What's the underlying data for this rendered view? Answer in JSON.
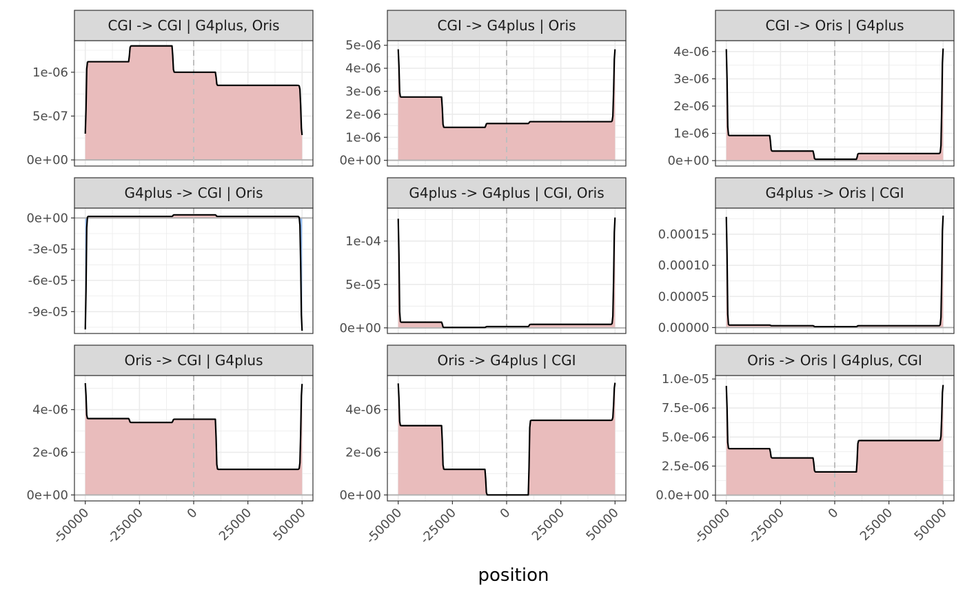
{
  "figure": {
    "xlabel": "position",
    "x_ticks": [
      -50000,
      -25000,
      0,
      25000,
      50000
    ],
    "x_tick_labels": [
      "-50000",
      "-25000",
      "0",
      "25000",
      "50000"
    ],
    "xlim": [
      -55000,
      55000
    ],
    "colors": {
      "positive_fill": "#e9bcbc",
      "negative_fill": "#8fbaf3",
      "line": "#000000",
      "strip_bg": "#d9d9d9",
      "panel_border": "#333333",
      "grid": "#ebebeb",
      "zero_line": "#b3b3b3",
      "center_dash": "#bfbfbf"
    }
  },
  "chart_data": [
    {
      "type": "area",
      "title": "CGI -> CGI | G4plus, Oris",
      "ylim": [
        -7e-08,
        1.36e-06
      ],
      "y_ticks": [
        0,
        5e-07,
        1e-06
      ],
      "y_tick_labels": [
        "0e+00",
        "5e-07",
        "1e-06"
      ],
      "x": [
        -50000,
        -30000,
        -10000,
        10000,
        30000,
        50000
      ],
      "y": [
        2.7e-07,
        1.12e-06,
        1.3e-06,
        1e-06,
        8.5e-07,
        2.7e-07
      ]
    },
    {
      "type": "area",
      "title": "CGI -> G4plus | Oris",
      "ylim": [
        -2.5e-07,
        5.2e-06
      ],
      "y_ticks": [
        0,
        1e-06,
        2e-06,
        3e-06,
        4e-06,
        5e-06
      ],
      "y_tick_labels": [
        "0e+00",
        "1e-06",
        "2e-06",
        "3e-06",
        "4e-06",
        "5e-06"
      ],
      "x": [
        -50000,
        -30000,
        -10000,
        10000,
        30000,
        50000
      ],
      "y": [
        4.9e-06,
        2.75e-06,
        1.43e-06,
        1.6e-06,
        1.68e-06,
        4.9e-06
      ]
    },
    {
      "type": "area",
      "title": "CGI -> Oris | G4plus",
      "ylim": [
        -2e-07,
        4.4e-06
      ],
      "y_ticks": [
        0,
        1e-06,
        2e-06,
        3e-06,
        4e-06
      ],
      "y_tick_labels": [
        "0e+00",
        "1e-06",
        "2e-06",
        "3e-06",
        "4e-06"
      ],
      "x": [
        -50000,
        -30000,
        -10000,
        10000,
        30000,
        50000
      ],
      "y": [
        4.2e-06,
        9.2e-07,
        3.5e-07,
        5e-08,
        2.6e-07,
        4.2e-06
      ]
    },
    {
      "type": "area",
      "title": "G4plus -> CGI | Oris",
      "ylim": [
        -0.000111,
        9.5e-06
      ],
      "y_ticks": [
        0,
        -3e-05,
        -6e-05,
        -9e-05
      ],
      "y_tick_labels": [
        "0e+00",
        "-3e-05",
        "-6e-05",
        "-9e-05"
      ],
      "x": [
        -50000,
        -30000,
        -10000,
        10000,
        30000,
        50000
      ],
      "y": [
        -0.000111,
        1.5e-06,
        1.5e-06,
        3e-06,
        1.5e-06,
        -0.000111
      ]
    },
    {
      "type": "area",
      "title": "G4plus -> G4plus | CGI, Oris",
      "ylim": [
        -6.5e-06,
        0.000138
      ],
      "y_ticks": [
        0,
        5e-05,
        0.0001
      ],
      "y_tick_labels": [
        "0e+00",
        "5e-05",
        "1e-04"
      ],
      "x": [
        -50000,
        -30000,
        -10000,
        10000,
        30000,
        50000
      ],
      "y": [
        0.00013,
        6.5e-06,
        5e-07,
        1.5e-06,
        4e-06,
        0.00013
      ]
    },
    {
      "type": "area",
      "title": "G4plus -> Oris | CGI",
      "ylim": [
        -9.5e-06,
        0.000192
      ],
      "y_ticks": [
        0,
        5e-05,
        0.0001,
        0.00015
      ],
      "y_tick_labels": [
        "0.00000",
        "0.00005",
        "0.00010",
        "0.00015"
      ],
      "x": [
        -50000,
        -30000,
        -10000,
        10000,
        30000,
        50000
      ],
      "y": [
        0.000184,
        4e-06,
        3e-06,
        1.5e-06,
        3e-06,
        0.000184
      ]
    },
    {
      "type": "area",
      "title": "Oris -> CGI | G4plus",
      "ylim": [
        -2.8e-07,
        5.6e-06
      ],
      "y_ticks": [
        0,
        2e-06,
        4e-06
      ],
      "y_tick_labels": [
        "0e+00",
        "2e-06",
        "4e-06"
      ],
      "x": [
        -50000,
        -30000,
        -10000,
        10000,
        30000,
        50000
      ],
      "y": [
        5.3e-06,
        3.58e-06,
        3.4e-06,
        3.55e-06,
        1.2e-06,
        5.3e-06
      ]
    },
    {
      "type": "area",
      "title": "Oris -> G4plus | CGI",
      "ylim": [
        -2.8e-07,
        5.6e-06
      ],
      "y_ticks": [
        0,
        2e-06,
        4e-06
      ],
      "y_tick_labels": [
        "0e+00",
        "2e-06",
        "4e-06"
      ],
      "x": [
        -50000,
        -30000,
        -10000,
        10000,
        30000,
        50000
      ],
      "y": [
        5.3e-06,
        3.25e-06,
        1.2e-06,
        0,
        3.5e-06,
        5.3e-06
      ]
    },
    {
      "type": "area",
      "title": "Oris -> Oris | G4plus, CGI",
      "ylim": [
        -5e-07,
        1.03e-05
      ],
      "y_ticks": [
        0,
        2.5e-06,
        5e-06,
        7.5e-06,
        1e-05
      ],
      "y_tick_labels": [
        "0.0e+00",
        "2.5e-06",
        "5.0e-06",
        "7.5e-06",
        "1.0e-05"
      ],
      "x": [
        -50000,
        -30000,
        -10000,
        10000,
        30000,
        50000
      ],
      "y": [
        9.6e-06,
        4e-06,
        3.2e-06,
        2e-06,
        4.7e-06,
        9.6e-06
      ]
    }
  ]
}
